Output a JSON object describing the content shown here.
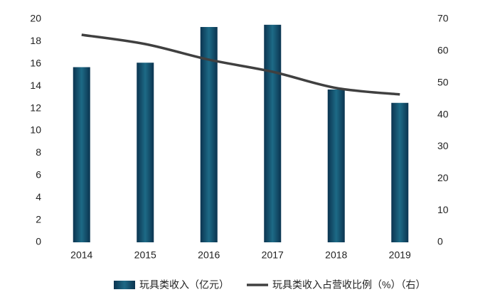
{
  "chart_data": {
    "type": "bar",
    "categories": [
      "2014",
      "2015",
      "2016",
      "2017",
      "2018",
      "2019"
    ],
    "series": [
      {
        "name": "玩具类收入（亿元）",
        "color": "#124e6c",
        "values": [
          15.7,
          16.1,
          19.3,
          19.5,
          13.7,
          12.5
        ]
      },
      {
        "name": "玩具类收入占营收比例（%）（右）",
        "color": "#404040",
        "type": "line",
        "axis": "y2",
        "values": [
          65.1,
          62.2,
          57.3,
          53.5,
          48.4,
          46.4
        ]
      }
    ],
    "ylim": [
      0,
      20
    ],
    "yticks": [
      0,
      2,
      4,
      6,
      8,
      10,
      12,
      14,
      16,
      18,
      20
    ],
    "y2lim": [
      0,
      70
    ],
    "y2ticks": [
      0,
      10,
      20,
      30,
      40,
      50,
      60,
      70
    ],
    "grid": false,
    "legend": "bottom"
  }
}
